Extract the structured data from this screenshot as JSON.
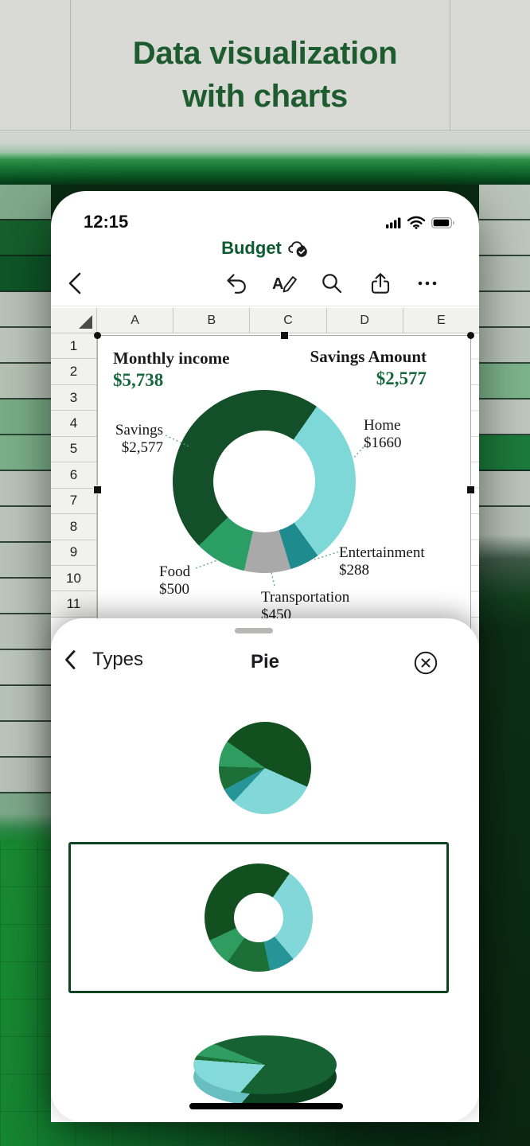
{
  "hero": {
    "line1": "Data visualization",
    "line2": "with charts"
  },
  "phone": {
    "status": {
      "time": "12:15",
      "icons": [
        "cellular-signal",
        "wifi",
        "battery"
      ]
    },
    "doc_title": "Budget",
    "doc_status_icon": "cloud-sync-check",
    "toolbar": {
      "back": "back-chevron",
      "items": [
        "undo",
        "format-pen",
        "search",
        "share",
        "more"
      ]
    },
    "spreadsheet": {
      "columns": [
        "A",
        "B",
        "C",
        "D",
        "E"
      ],
      "rows": [
        "1",
        "2",
        "3",
        "4",
        "5",
        "6",
        "7",
        "8",
        "9",
        "10",
        "11"
      ]
    },
    "chart": {
      "kpi_left": {
        "label": "Monthly income",
        "value": "$5,738"
      },
      "kpi_right": {
        "label": "Savings Amount",
        "value": "$2,577"
      },
      "donut": {
        "start_deg": 35,
        "slices": [
          {
            "name": "Home",
            "color": "#7ed8d8",
            "value": 1660
          },
          {
            "name": "Entertainment",
            "color": "#1e8c8e",
            "value": 288
          },
          {
            "name": "Transportation",
            "color": "#a9a9a9",
            "value": 450
          },
          {
            "name": "Food",
            "color": "#2b9e66",
            "value": 500
          },
          {
            "name": "Savings",
            "color": "#134f28",
            "value": 2577
          }
        ]
      },
      "labels": [
        {
          "name": "Savings",
          "value": "$2,577"
        },
        {
          "name": "Home",
          "value": "$1660"
        },
        {
          "name": "Entertainment",
          "value": "$288"
        },
        {
          "name": "Transportation",
          "value": "$450"
        },
        {
          "name": "Food",
          "value": "$500"
        }
      ]
    }
  },
  "sheet": {
    "back_label": "Types",
    "title": "Pie",
    "close_icon": "close-circle",
    "options": [
      {
        "name": "pie",
        "selected": false,
        "start_deg": 305,
        "slices": [
          {
            "color": "#12501f",
            "deg": 169
          },
          {
            "color": "#82d8d8",
            "deg": 109
          },
          {
            "color": "#269598",
            "deg": 19
          },
          {
            "color": "#1d6f38",
            "deg": 30
          },
          {
            "color": "#2f9c60",
            "deg": 33
          }
        ]
      },
      {
        "name": "doughnut",
        "selected": true,
        "start_deg": 35,
        "slices": [
          {
            "color": "#82d8d8",
            "deg": 105
          },
          {
            "color": "#269598",
            "deg": 28
          },
          {
            "color": "#1d6f38",
            "deg": 47
          },
          {
            "color": "#2f9c60",
            "deg": 30
          },
          {
            "color": "#12501f",
            "deg": 150
          }
        ]
      },
      {
        "name": "pie-3d",
        "selected": false,
        "start_deg": 315,
        "top_slices": [
          {
            "color": "#176233",
            "deg": 245
          },
          {
            "color": "#84d9da",
            "deg": 80
          },
          {
            "color": "#1d6f38",
            "deg": 8
          },
          {
            "color": "#2f9c60",
            "deg": 27
          }
        ],
        "depth_slices": [
          {
            "color": "#0b421f",
            "deg": 245
          },
          {
            "color": "#68bfc1",
            "deg": 80
          },
          {
            "color": "#165c2d",
            "deg": 8
          },
          {
            "color": "#237d4a",
            "deg": 27
          }
        ]
      }
    ]
  },
  "chart_data": {
    "type": "pie",
    "subtype": "doughnut",
    "title": "Budget",
    "categories": [
      "Savings",
      "Home",
      "Entertainment",
      "Transportation",
      "Food"
    ],
    "values": [
      2577,
      1660,
      288,
      450,
      500
    ],
    "data_labels": [
      "$2,577",
      "$1660",
      "$288",
      "$450",
      "$500"
    ],
    "colors": {
      "Savings": "#134f28",
      "Home": "#7ed8d8",
      "Entertainment": "#1e8c8e",
      "Transportation": "#a9a9a9",
      "Food": "#2b9e66"
    },
    "kpis": [
      {
        "label": "Monthly income",
        "value": "$5,738"
      },
      {
        "label": "Savings Amount",
        "value": "$2,577"
      }
    ],
    "legend": "none",
    "labels_position": "outside-callout"
  },
  "colors": {
    "accent_green": "#0e5a2d",
    "headline_green": "#1d5c2e",
    "selection_border": "#0c4423",
    "band_green": "#157434"
  }
}
